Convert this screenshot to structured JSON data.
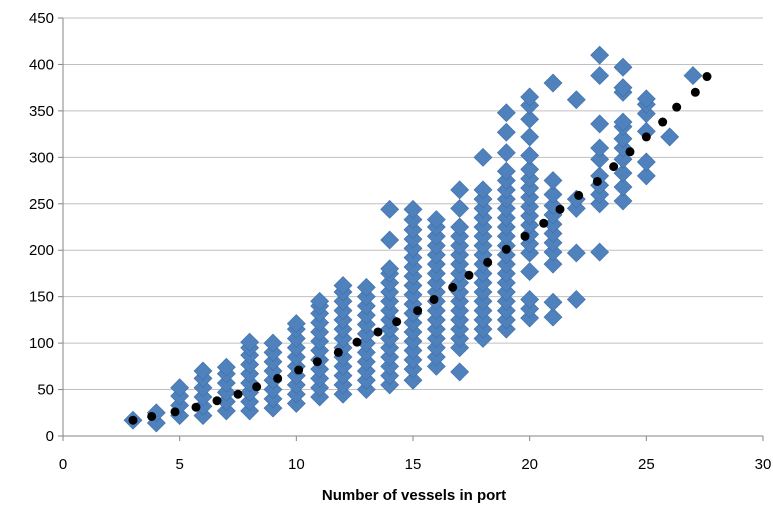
{
  "chart_data": {
    "type": "scatter",
    "title": "",
    "xlabel": "Number of vessels in port",
    "ylabel": "",
    "xlim": [
      0,
      30
    ],
    "ylim": [
      0,
      450
    ],
    "x_ticks": [
      0,
      5,
      10,
      15,
      20,
      25,
      30
    ],
    "y_ticks": [
      0,
      50,
      100,
      150,
      200,
      250,
      300,
      350,
      400,
      450
    ],
    "grid": "horizontal",
    "legend": "none",
    "colors": {
      "observed": "#4f81bd",
      "fitted": "#000000",
      "grid": "#c0c0c0"
    },
    "series": [
      {
        "marker": "diamond",
        "color": "#4f81bd",
        "points": [
          [
            3,
            17
          ],
          [
            4,
            14
          ],
          [
            4,
            25
          ],
          [
            5,
            22
          ],
          [
            5,
            33
          ],
          [
            5,
            43
          ],
          [
            5,
            52
          ],
          [
            6,
            22
          ],
          [
            6,
            32
          ],
          [
            6,
            42
          ],
          [
            6,
            52
          ],
          [
            6,
            62
          ],
          [
            6,
            70
          ],
          [
            7,
            27
          ],
          [
            7,
            37
          ],
          [
            7,
            47
          ],
          [
            7,
            57
          ],
          [
            7,
            67
          ],
          [
            7,
            74
          ],
          [
            8,
            27
          ],
          [
            8,
            37
          ],
          [
            8,
            47
          ],
          [
            8,
            57
          ],
          [
            8,
            67
          ],
          [
            8,
            77
          ],
          [
            8,
            87
          ],
          [
            8,
            95
          ],
          [
            8,
            101
          ],
          [
            9,
            30
          ],
          [
            9,
            40
          ],
          [
            9,
            50
          ],
          [
            9,
            60
          ],
          [
            9,
            70
          ],
          [
            9,
            80
          ],
          [
            9,
            90
          ],
          [
            9,
            100
          ],
          [
            10,
            35
          ],
          [
            10,
            45
          ],
          [
            10,
            55
          ],
          [
            10,
            65
          ],
          [
            10,
            75
          ],
          [
            10,
            85
          ],
          [
            10,
            95
          ],
          [
            10,
            105
          ],
          [
            10,
            115
          ],
          [
            10,
            121
          ],
          [
            11,
            42
          ],
          [
            11,
            52
          ],
          [
            11,
            62
          ],
          [
            11,
            72
          ],
          [
            11,
            82
          ],
          [
            11,
            92
          ],
          [
            11,
            102
          ],
          [
            11,
            112
          ],
          [
            11,
            122
          ],
          [
            11,
            132
          ],
          [
            11,
            140
          ],
          [
            11,
            145
          ],
          [
            12,
            45
          ],
          [
            12,
            55
          ],
          [
            12,
            65
          ],
          [
            12,
            75
          ],
          [
            12,
            85
          ],
          [
            12,
            95
          ],
          [
            12,
            105
          ],
          [
            12,
            115
          ],
          [
            12,
            125
          ],
          [
            12,
            135
          ],
          [
            12,
            145
          ],
          [
            12,
            155
          ],
          [
            12,
            162
          ],
          [
            13,
            50
          ],
          [
            13,
            60
          ],
          [
            13,
            70
          ],
          [
            13,
            80
          ],
          [
            13,
            90
          ],
          [
            13,
            100
          ],
          [
            13,
            110
          ],
          [
            13,
            120
          ],
          [
            13,
            130
          ],
          [
            13,
            140
          ],
          [
            13,
            150
          ],
          [
            13,
            160
          ],
          [
            14,
            55
          ],
          [
            14,
            65
          ],
          [
            14,
            75
          ],
          [
            14,
            85
          ],
          [
            14,
            95
          ],
          [
            14,
            105
          ],
          [
            14,
            115
          ],
          [
            14,
            125
          ],
          [
            14,
            135
          ],
          [
            14,
            145
          ],
          [
            14,
            155
          ],
          [
            14,
            165
          ],
          [
            14,
            175
          ],
          [
            14,
            180
          ],
          [
            14,
            211
          ],
          [
            14,
            244
          ],
          [
            15,
            60
          ],
          [
            15,
            72
          ],
          [
            15,
            82
          ],
          [
            15,
            92
          ],
          [
            15,
            102
          ],
          [
            15,
            112
          ],
          [
            15,
            122
          ],
          [
            15,
            132
          ],
          [
            15,
            142
          ],
          [
            15,
            152
          ],
          [
            15,
            162
          ],
          [
            15,
            172
          ],
          [
            15,
            182
          ],
          [
            15,
            192
          ],
          [
            15,
            202
          ],
          [
            15,
            212
          ],
          [
            15,
            222
          ],
          [
            15,
            233
          ],
          [
            15,
            244
          ],
          [
            16,
            75
          ],
          [
            16,
            85
          ],
          [
            16,
            95
          ],
          [
            16,
            105
          ],
          [
            16,
            115
          ],
          [
            16,
            125
          ],
          [
            16,
            135
          ],
          [
            16,
            145
          ],
          [
            16,
            155
          ],
          [
            16,
            165
          ],
          [
            16,
            175
          ],
          [
            16,
            185
          ],
          [
            16,
            195
          ],
          [
            16,
            205
          ],
          [
            16,
            215
          ],
          [
            16,
            225
          ],
          [
            16,
            233
          ],
          [
            17,
            69
          ],
          [
            17,
            95
          ],
          [
            17,
            105
          ],
          [
            17,
            115
          ],
          [
            17,
            125
          ],
          [
            17,
            135
          ],
          [
            17,
            145
          ],
          [
            17,
            155
          ],
          [
            17,
            165
          ],
          [
            17,
            175
          ],
          [
            17,
            185
          ],
          [
            17,
            195
          ],
          [
            17,
            205
          ],
          [
            17,
            215
          ],
          [
            17,
            225
          ],
          [
            17,
            245
          ],
          [
            17,
            265
          ],
          [
            18,
            105
          ],
          [
            18,
            115
          ],
          [
            18,
            125
          ],
          [
            18,
            135
          ],
          [
            18,
            145
          ],
          [
            18,
            155
          ],
          [
            18,
            165
          ],
          [
            18,
            175
          ],
          [
            18,
            185
          ],
          [
            18,
            195
          ],
          [
            18,
            205
          ],
          [
            18,
            215
          ],
          [
            18,
            225
          ],
          [
            18,
            235
          ],
          [
            18,
            245
          ],
          [
            18,
            255
          ],
          [
            18,
            265
          ],
          [
            18,
            300
          ],
          [
            19,
            115
          ],
          [
            19,
            125
          ],
          [
            19,
            135
          ],
          [
            19,
            145
          ],
          [
            19,
            155
          ],
          [
            19,
            165
          ],
          [
            19,
            175
          ],
          [
            19,
            185
          ],
          [
            19,
            195
          ],
          [
            19,
            205
          ],
          [
            19,
            215
          ],
          [
            19,
            225
          ],
          [
            19,
            235
          ],
          [
            19,
            245
          ],
          [
            19,
            255
          ],
          [
            19,
            265
          ],
          [
            19,
            275
          ],
          [
            19,
            285
          ],
          [
            19,
            305
          ],
          [
            19,
            327
          ],
          [
            19,
            348
          ],
          [
            20,
            127
          ],
          [
            20,
            137
          ],
          [
            20,
            147
          ],
          [
            20,
            177
          ],
          [
            20,
            197
          ],
          [
            20,
            207
          ],
          [
            20,
            217
          ],
          [
            20,
            227
          ],
          [
            20,
            237
          ],
          [
            20,
            247
          ],
          [
            20,
            257
          ],
          [
            20,
            267
          ],
          [
            20,
            277
          ],
          [
            20,
            287
          ],
          [
            20,
            302
          ],
          [
            20,
            322
          ],
          [
            20,
            341
          ],
          [
            20,
            356
          ],
          [
            20,
            365
          ],
          [
            21,
            128
          ],
          [
            21,
            144
          ],
          [
            21,
            185
          ],
          [
            21,
            198
          ],
          [
            21,
            208
          ],
          [
            21,
            218
          ],
          [
            21,
            228
          ],
          [
            21,
            238
          ],
          [
            21,
            248
          ],
          [
            21,
            260
          ],
          [
            21,
            275
          ],
          [
            21,
            380
          ],
          [
            22,
            147
          ],
          [
            22,
            197
          ],
          [
            22,
            245
          ],
          [
            22,
            255
          ],
          [
            22,
            362
          ],
          [
            23,
            198
          ],
          [
            23,
            250
          ],
          [
            23,
            260
          ],
          [
            23,
            270
          ],
          [
            23,
            280
          ],
          [
            23,
            298
          ],
          [
            23,
            310
          ],
          [
            23,
            336
          ],
          [
            23,
            388
          ],
          [
            23,
            410
          ],
          [
            24,
            253
          ],
          [
            24,
            268
          ],
          [
            24,
            283
          ],
          [
            24,
            298
          ],
          [
            24,
            310
          ],
          [
            24,
            320
          ],
          [
            24,
            333
          ],
          [
            24,
            338
          ],
          [
            24,
            370
          ],
          [
            24,
            375
          ],
          [
            24,
            397
          ],
          [
            25,
            280
          ],
          [
            25,
            295
          ],
          [
            25,
            328
          ],
          [
            25,
            347
          ],
          [
            25,
            357
          ],
          [
            25,
            363
          ],
          [
            26,
            322
          ],
          [
            27,
            388
          ]
        ]
      },
      {
        "marker": "circle",
        "color": "#000000",
        "points": [
          [
            3,
            17
          ],
          [
            3.8,
            21
          ],
          [
            4.8,
            26
          ],
          [
            5.7,
            31
          ],
          [
            6.6,
            38
          ],
          [
            7.5,
            45
          ],
          [
            8.3,
            53
          ],
          [
            9.2,
            62
          ],
          [
            10.1,
            71
          ],
          [
            10.9,
            80
          ],
          [
            11.8,
            90
          ],
          [
            12.6,
            101
          ],
          [
            13.5,
            112
          ],
          [
            14.3,
            123
          ],
          [
            15.2,
            135
          ],
          [
            15.9,
            147
          ],
          [
            16.7,
            160
          ],
          [
            17.4,
            173
          ],
          [
            18.2,
            187
          ],
          [
            19,
            201
          ],
          [
            19.8,
            215
          ],
          [
            20.6,
            229
          ],
          [
            21.3,
            244
          ],
          [
            22.1,
            259
          ],
          [
            22.9,
            274
          ],
          [
            23.6,
            290
          ],
          [
            24.3,
            306
          ],
          [
            25,
            322
          ],
          [
            25.7,
            338
          ],
          [
            26.3,
            354
          ],
          [
            27.1,
            370
          ],
          [
            27.6,
            387
          ]
        ]
      }
    ]
  }
}
